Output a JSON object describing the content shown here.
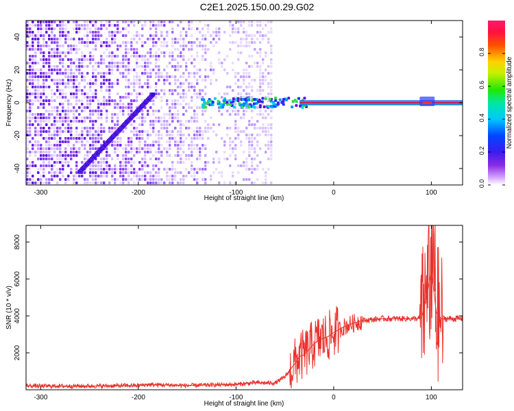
{
  "title": "C2E1.2025.150.00.29.G02",
  "colors": {
    "snr_line": "#e8302a",
    "center_line": "#d4145a",
    "frame": "#000000"
  },
  "colorbar": {
    "label": "Normalized spectral amplitude",
    "ticks": [
      "0.0",
      "0.2",
      "0.4",
      "0.6",
      "0.8"
    ]
  },
  "chart_data": [
    {
      "type": "heatmap",
      "title": "",
      "xlabel": "Height of straight line (km)",
      "ylabel": "Frequency (Hz)",
      "xlim": [
        -315,
        132
      ],
      "ylim": [
        -50,
        50
      ],
      "xticks": [
        -300,
        -200,
        -100,
        0,
        100
      ],
      "yticks": [
        -40,
        -20,
        0,
        20,
        40
      ],
      "colormap": "rainbow (white/purple → blue → cyan → green → yellow → red → magenta)",
      "zlim": [
        0,
        1
      ],
      "features": [
        {
          "name": "noise region",
          "x_range": [
            -315,
            -65
          ],
          "freq_range": [
            -50,
            50
          ],
          "amplitude": "low (0.0–0.2)"
        },
        {
          "name": "diagonal streak",
          "x_start": -260,
          "x_end": -185,
          "freq_start": -42,
          "freq_end": 5
        },
        {
          "name": "carrier tone",
          "freq": 0,
          "x_range": [
            -135,
            132
          ],
          "amplitude_near_1_from_x": -35
        }
      ]
    },
    {
      "type": "line",
      "title": "",
      "xlabel": "Height of straight line (km)",
      "ylabel": "SNR (10 * v/v)",
      "xlim": [
        -315,
        132
      ],
      "ylim": [
        0,
        8900
      ],
      "xticks": [
        -300,
        -200,
        -100,
        0,
        100
      ],
      "yticks": [
        2000,
        4000,
        6000,
        8000
      ],
      "series": [
        {
          "x": [
            -315,
            -300,
            -250,
            -200,
            -190,
            -150,
            -100,
            -80,
            -60,
            -50,
            -40,
            -35,
            -30,
            -25,
            -20,
            -15,
            -10,
            -5,
            0,
            5,
            10,
            20,
            30,
            40,
            50,
            60,
            70,
            80,
            85,
            90,
            95,
            100,
            105,
            110,
            115,
            120,
            132
          ],
          "y": [
            220,
            200,
            200,
            230,
            280,
            230,
            290,
            380,
            360,
            700,
            1400,
            1800,
            1900,
            2200,
            2500,
            2700,
            2800,
            2900,
            3100,
            3250,
            3400,
            3600,
            3750,
            3800,
            3850,
            3850,
            3850,
            3850,
            3850,
            3900,
            5000,
            6500,
            4200,
            3850,
            3850,
            3850,
            3850
          ]
        }
      ]
    }
  ]
}
